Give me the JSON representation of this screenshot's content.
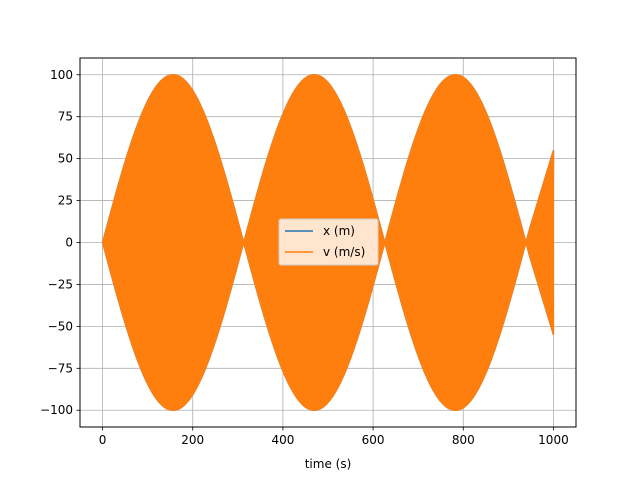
{
  "chart_data": {
    "type": "line",
    "title": "",
    "xlabel": "time (s)",
    "ylabel": "",
    "xlim": [
      -50,
      1050
    ],
    "ylim": [
      -110,
      110
    ],
    "x_ticks": [
      0,
      200,
      400,
      600,
      800,
      1000
    ],
    "x_tick_labels": [
      "0",
      "200",
      "400",
      "600",
      "800",
      "1000"
    ],
    "y_ticks": [
      -100,
      -75,
      -50,
      -25,
      0,
      25,
      50,
      75,
      100
    ],
    "y_tick_labels": [
      "−100",
      "−75",
      "−50",
      "−25",
      "0",
      "25",
      "50",
      "75",
      "100"
    ],
    "grid": true,
    "legend_position": "center",
    "series": [
      {
        "name": "x (m)",
        "color": "#1f77b4",
        "description_envelope": {
          "x": [
            0,
            78,
            156,
            234,
            313,
            391,
            469,
            547,
            626,
            704,
            782,
            860,
            939,
            1000
          ],
          "y": [
            0,
            70.7,
            100,
            70.7,
            0,
            70.7,
            100,
            70.7,
            0,
            70.7,
            100,
            70.7,
            0,
            54
          ]
        }
      },
      {
        "name": "v (m/s)",
        "color": "#ff7f0e",
        "description_envelope": {
          "x": [
            0,
            78,
            156,
            234,
            313,
            391,
            469,
            547,
            626,
            704,
            782,
            860,
            939,
            1000
          ],
          "y": [
            0,
            70.7,
            100,
            70.7,
            0,
            70.7,
            100,
            70.7,
            0,
            70.7,
            100,
            70.7,
            0,
            54
          ]
        }
      }
    ]
  }
}
